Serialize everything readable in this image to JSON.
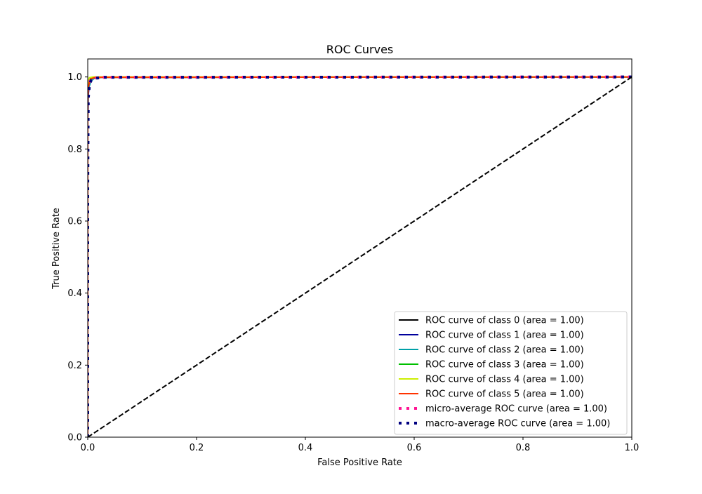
{
  "chart_data": {
    "type": "line",
    "title": "ROC Curves",
    "xlabel": "False Positive Rate",
    "ylabel": "True Positive Rate",
    "xlim": [
      0.0,
      1.0
    ],
    "ylim": [
      0.0,
      1.05
    ],
    "x_ticks": [
      0.0,
      0.2,
      0.4,
      0.6,
      0.8,
      1.0
    ],
    "y_ticks": [
      0.0,
      0.2,
      0.4,
      0.6,
      0.8,
      1.0
    ],
    "x_tick_labels": [
      "0.0",
      "0.2",
      "0.4",
      "0.6",
      "0.8",
      "1.0"
    ],
    "y_tick_labels": [
      "0.0",
      "0.2",
      "0.4",
      "0.6",
      "0.8",
      "1.0"
    ],
    "grid": false,
    "legend_position": "lower-right",
    "series": [
      {
        "name": "ROC curve of class 0 (area = 1.00)",
        "color": "#000000",
        "style": "solid",
        "x": [
          0.0,
          0.0,
          0.001,
          0.003,
          0.006,
          0.01,
          0.02,
          1.0
        ],
        "y": [
          0.0,
          0.9,
          0.96,
          0.985,
          0.993,
          0.997,
          0.999,
          1.0
        ]
      },
      {
        "name": "ROC curve of class 1 (area = 1.00)",
        "color": "#00009c",
        "style": "solid",
        "x": [
          0.0,
          0.0,
          0.001,
          0.003,
          0.006,
          0.012,
          0.025,
          1.0
        ],
        "y": [
          0.0,
          0.88,
          0.95,
          0.98,
          0.99,
          0.996,
          0.999,
          1.0
        ]
      },
      {
        "name": "ROC curve of class 2 (area = 1.00)",
        "color": "#00a0a8",
        "style": "solid",
        "x": [
          0.0,
          0.0,
          0.001,
          0.003,
          0.005,
          0.01,
          0.02,
          1.0
        ],
        "y": [
          0.0,
          0.92,
          0.965,
          0.975,
          0.985,
          0.995,
          0.999,
          1.0
        ]
      },
      {
        "name": "ROC curve of class 3 (area = 1.00)",
        "color": "#00c000",
        "style": "solid",
        "x": [
          0.0,
          0.0,
          0.001,
          0.003,
          0.006,
          0.012,
          1.0
        ],
        "y": [
          0.0,
          0.94,
          0.975,
          0.99,
          0.997,
          0.999,
          1.0
        ]
      },
      {
        "name": "ROC curve of class 4 (area = 1.00)",
        "color": "#ccee00",
        "style": "solid",
        "x": [
          0.0,
          0.0,
          0.001,
          0.003,
          0.01,
          1.0
        ],
        "y": [
          0.0,
          0.96,
          0.99,
          0.998,
          1.0,
          1.0
        ]
      },
      {
        "name": "ROC curve of class 5 (area = 1.00)",
        "color": "#ff3300",
        "style": "solid",
        "x": [
          0.0,
          0.0,
          0.001,
          0.003,
          0.006,
          0.015,
          1.0
        ],
        "y": [
          0.0,
          0.93,
          0.97,
          0.985,
          0.995,
          0.999,
          1.0
        ]
      },
      {
        "name": "micro-average ROC curve (area = 1.00)",
        "color": "#ff1493",
        "style": "dotted",
        "x": [
          0.0,
          0.0,
          0.001,
          0.003,
          0.006,
          0.012,
          0.03,
          1.0
        ],
        "y": [
          0.0,
          0.92,
          0.965,
          0.985,
          0.993,
          0.997,
          0.999,
          1.0
        ]
      },
      {
        "name": "macro-average ROC curve (area = 1.00)",
        "color": "#000080",
        "style": "dotted",
        "x": [
          0.0,
          0.0,
          0.001,
          0.003,
          0.006,
          0.012,
          0.03,
          1.0
        ],
        "y": [
          0.0,
          0.68,
          0.94,
          0.975,
          0.99,
          0.996,
          0.999,
          1.0
        ]
      }
    ],
    "diagonal": {
      "x": [
        0.0,
        1.0
      ],
      "y": [
        0.0,
        1.0
      ],
      "color": "#000000",
      "style": "dashed"
    }
  }
}
